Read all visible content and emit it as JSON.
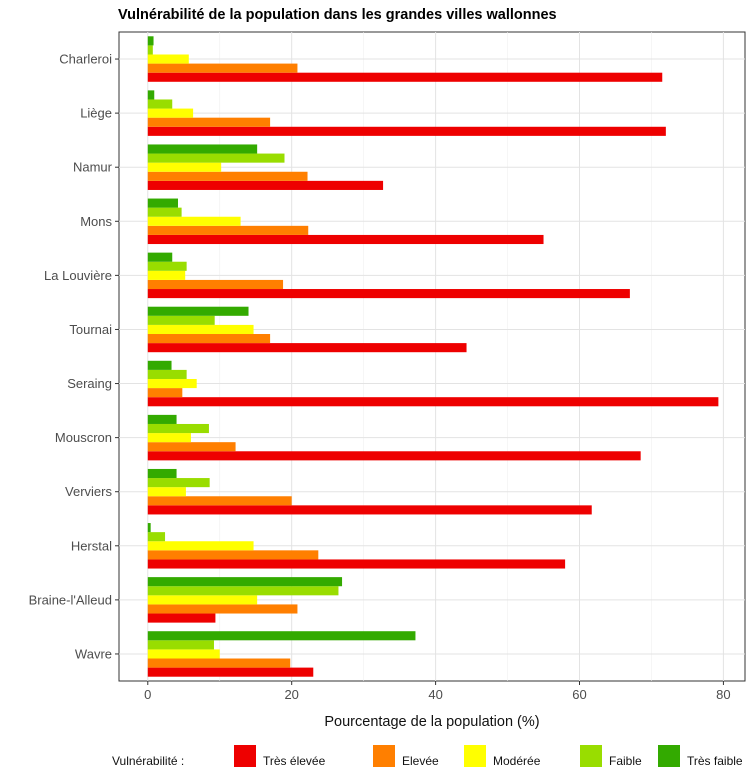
{
  "chart_data": {
    "type": "bar",
    "orientation": "horizontal",
    "title": "Vulnérabilité de la population dans les grandes villes wallonnes",
    "xlabel": "Pourcentage de la population (%)",
    "ylabel": "",
    "xlim": [
      -4,
      83
    ],
    "x_ticks": [
      0,
      20,
      40,
      60,
      80
    ],
    "grid": true,
    "legend_position": "bottom",
    "legend_title": "Vulnérabilité :",
    "categories": [
      "Charleroi",
      "Liège",
      "Namur",
      "Mons",
      "La Louvière",
      "Tournai",
      "Seraing",
      "Mouscron",
      "Verviers",
      "Herstal",
      "Braine-l'Alleud",
      "Wavre"
    ],
    "series": [
      {
        "name": "Très élevée",
        "color": "#ee0000",
        "values": [
          71.5,
          72,
          32.7,
          55,
          67,
          44.3,
          79.3,
          68.5,
          61.7,
          58,
          9.4,
          23
        ]
      },
      {
        "name": "Elevée",
        "color": "#ff7f00",
        "values": [
          20.8,
          17,
          22.2,
          22.3,
          18.8,
          17,
          4.8,
          12.2,
          20,
          23.7,
          20.8,
          19.8
        ]
      },
      {
        "name": "Modérée",
        "color": "#ffff00",
        "values": [
          5.7,
          6.3,
          10.2,
          12.9,
          5.2,
          14.7,
          6.8,
          6,
          5.3,
          14.7,
          15.2,
          10
        ]
      },
      {
        "name": "Faible",
        "color": "#99dd00",
        "values": [
          0.7,
          3.4,
          19,
          4.7,
          5.4,
          9.3,
          5.4,
          8.5,
          8.6,
          2.4,
          26.5,
          9.2
        ]
      },
      {
        "name": "Très faible",
        "color": "#33aa00",
        "values": [
          0.8,
          0.9,
          15.2,
          4.2,
          3.4,
          14,
          3.3,
          4,
          4,
          0.4,
          27,
          37.2
        ]
      }
    ]
  }
}
